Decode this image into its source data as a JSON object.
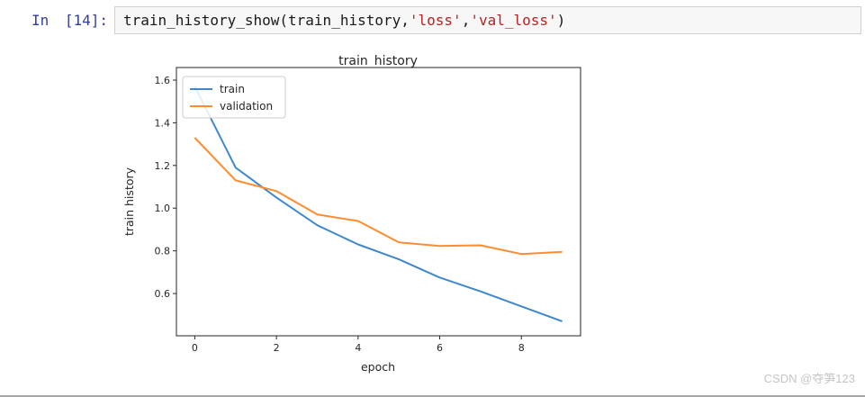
{
  "cell": {
    "prompt": "In [14]:",
    "code_segments": [
      {
        "text": "train_history_show(train_history,",
        "type": "plain"
      },
      {
        "text": "'loss'",
        "type": "string"
      },
      {
        "text": ",",
        "type": "plain"
      },
      {
        "text": "'val_loss'",
        "type": "string"
      },
      {
        "text": ")",
        "type": "plain"
      }
    ]
  },
  "chart_data": {
    "type": "line",
    "title": "train_history",
    "xlabel": "epoch",
    "ylabel": "train history",
    "x": [
      0,
      1,
      2,
      3,
      4,
      5,
      6,
      7,
      8,
      9
    ],
    "series": [
      {
        "name": "train",
        "color": "#3f88cc",
        "values": [
          1.57,
          1.19,
          1.05,
          0.92,
          0.83,
          0.76,
          0.675,
          0.61,
          0.54,
          0.47
        ]
      },
      {
        "name": "validation",
        "color": "#ff8c2e",
        "values": [
          1.33,
          1.13,
          1.08,
          0.97,
          0.94,
          0.84,
          0.823,
          0.826,
          0.785,
          0.795
        ]
      }
    ],
    "xticks": [
      0,
      2,
      4,
      6,
      8
    ],
    "yticks": [
      0.6,
      0.8,
      1.0,
      1.2,
      1.4,
      1.6
    ],
    "xlim": [
      -0.45,
      9.45
    ],
    "ylim": [
      0.402,
      1.659
    ],
    "legend_position": "upper-left",
    "grid": false,
    "axis_color": "#262626"
  },
  "watermark": "CSDN @夺笋123"
}
